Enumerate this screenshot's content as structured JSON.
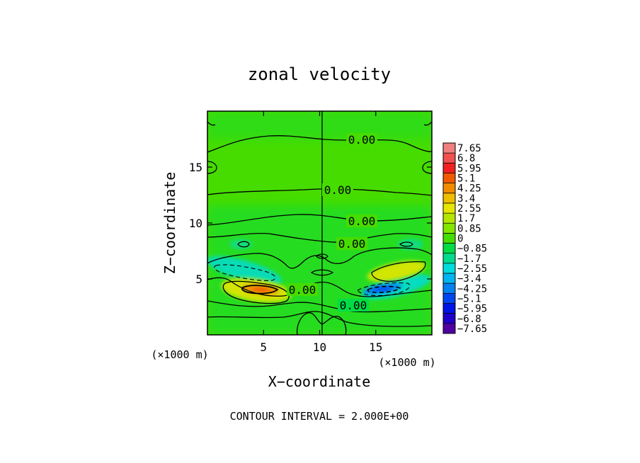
{
  "chart_data": {
    "type": "heatmap",
    "title": "zonal velocity",
    "xlabel": "X−coordinate",
    "ylabel": "Z−coordinate",
    "x_unit_left": "(×1000 m)",
    "x_unit_right": "(×1000 m)",
    "xlim": [
      0,
      20
    ],
    "ylim": [
      0,
      20
    ],
    "x_ticks": [
      5,
      10,
      15
    ],
    "y_ticks": [
      5,
      10,
      15
    ],
    "footer": "CONTOUR INTERVAL = 2.000E+00",
    "contour_labels": [
      {
        "text": "0.00",
        "x": 15.2,
        "z": 17.2
      },
      {
        "text": "0.00",
        "x": 10.9,
        "z": 12.9
      },
      {
        "text": "0.00",
        "x": 15.2,
        "z": 10.2
      },
      {
        "text": "0.00",
        "x": 12.7,
        "z": 8.3
      },
      {
        "text": "0.00",
        "x": 8.6,
        "z": 4.1
      },
      {
        "text": "0.00",
        "x": 12.8,
        "z": 2.7
      }
    ],
    "colorbar": {
      "labels": [
        "7.65",
        "6.8",
        "5.95",
        "5.1",
        "4.25",
        "3.4",
        "2.55",
        "1.7",
        "0.85",
        "0",
        "−0.85",
        "−1.7",
        "−2.55",
        "−3.4",
        "−4.25",
        "−5.1",
        "−5.95",
        "−6.8",
        "−7.65"
      ],
      "colors": [
        "#f08080",
        "#f05050",
        "#f02020",
        "#f05a00",
        "#f08c00",
        "#f0be00",
        "#e6e600",
        "#b4e600",
        "#82e600",
        "#46dc00",
        "#00dc46",
        "#00dc8c",
        "#00dcdc",
        "#00b4f0",
        "#0082f0",
        "#0046f0",
        "#0014e6",
        "#2000c8",
        "#5000a0"
      ]
    },
    "features": [
      {
        "name": "positive-lobe-left",
        "x": 4.5,
        "z": 4.1,
        "peak": 4.0
      },
      {
        "name": "negative-lobe-left",
        "x": 3.5,
        "z": 5.6,
        "peak": -2.0
      },
      {
        "name": "positive-lobe-right",
        "x": 15.5,
        "z": 5.6,
        "peak": 2.5
      },
      {
        "name": "negative-lobe-right",
        "x": 15.0,
        "z": 4.1,
        "peak": -4.0
      }
    ]
  }
}
